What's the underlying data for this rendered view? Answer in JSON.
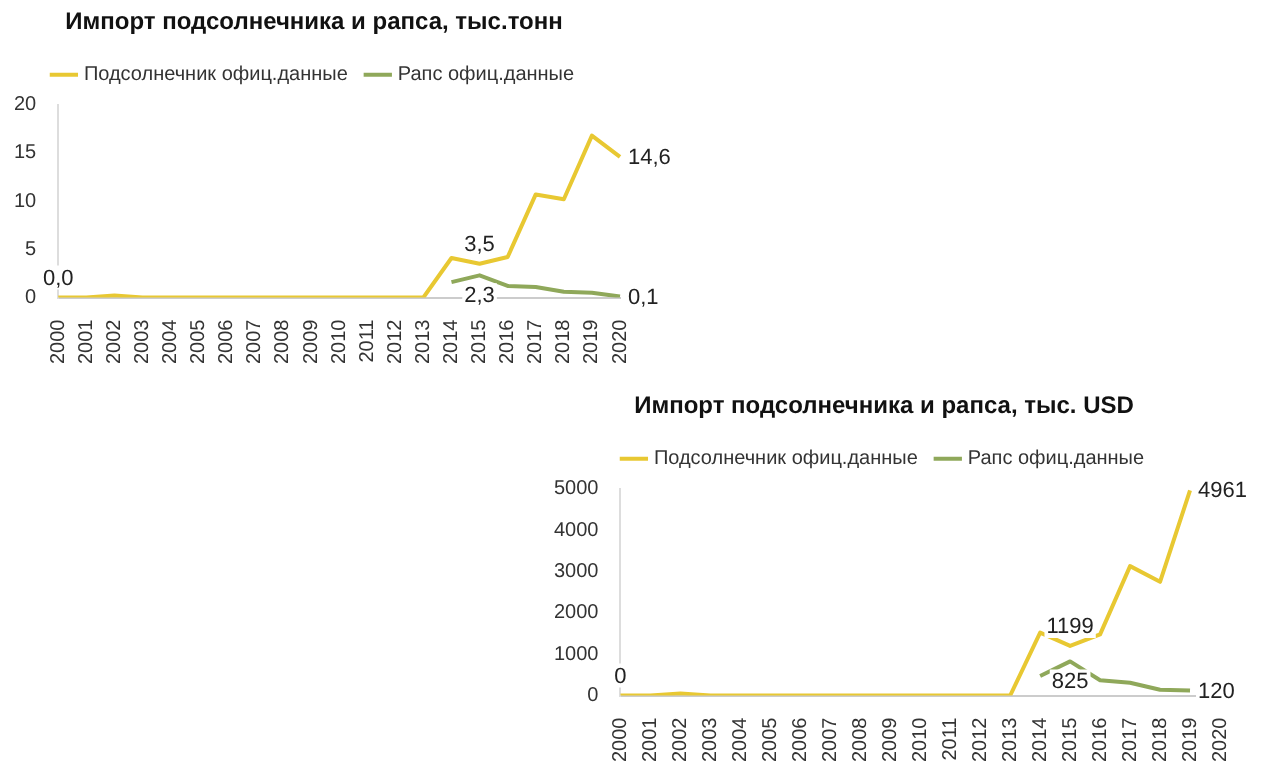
{
  "chart_data": [
    {
      "type": "line",
      "title": "Импорт подсолнечника и рапса, тыс.тонн",
      "categories": [
        "2000",
        "2001",
        "2002",
        "2003",
        "2004",
        "2005",
        "2006",
        "2007",
        "2008",
        "2009",
        "2010",
        "2011",
        "2012",
        "2013",
        "2014",
        "2015",
        "2016",
        "2017",
        "2018",
        "2019",
        "2020"
      ],
      "ylim": [
        0,
        20
      ],
      "yticks": [
        0,
        5,
        10,
        15,
        20
      ],
      "grid": false,
      "legend": "top",
      "marker": "none",
      "series": [
        {
          "name": "Подсолнечник офиц.данные",
          "color": "#e8c832",
          "values": [
            0.0,
            0,
            0.2,
            0,
            0,
            0,
            0,
            0,
            0,
            0,
            0,
            0,
            0,
            0,
            4.1,
            3.5,
            4.2,
            10.7,
            10.2,
            16.8,
            14.6
          ],
          "value_labels": [
            "0,0",
            null,
            null,
            null,
            null,
            null,
            null,
            null,
            null,
            null,
            null,
            null,
            null,
            null,
            null,
            "3,5",
            null,
            null,
            null,
            null,
            "14,6"
          ]
        },
        {
          "name": "Рапс офиц.данные",
          "color": "#8fa85a",
          "values": [
            null,
            null,
            null,
            null,
            null,
            null,
            null,
            null,
            null,
            null,
            null,
            null,
            null,
            null,
            1.6,
            2.3,
            1.2,
            1.1,
            0.6,
            0.5,
            0.1
          ],
          "value_labels": [
            null,
            null,
            null,
            null,
            null,
            null,
            null,
            null,
            null,
            null,
            null,
            null,
            null,
            null,
            null,
            "2,3",
            null,
            null,
            null,
            null,
            "0,1"
          ]
        }
      ]
    },
    {
      "type": "line",
      "title": "Импорт подсолнечника и рапса, тыс. USD",
      "categories": [
        "2000",
        "2001",
        "2002",
        "2003",
        "2004",
        "2005",
        "2006",
        "2007",
        "2008",
        "2009",
        "2010",
        "2011",
        "2012",
        "2013",
        "2014",
        "2015",
        "2016",
        "2017",
        "2018",
        "2019",
        "2020"
      ],
      "ylim": [
        0,
        5000
      ],
      "yticks": [
        0,
        1000,
        2000,
        3000,
        4000,
        5000
      ],
      "grid": false,
      "legend": "top",
      "marker": "none",
      "series": [
        {
          "name": "Подсолнечник офиц.данные",
          "color": "#e8c832",
          "values": [
            0,
            0,
            50,
            0,
            0,
            0,
            0,
            0,
            0,
            0,
            0,
            0,
            0,
            0,
            1520,
            1199,
            1480,
            3130,
            2750,
            4961,
            null
          ],
          "value_labels": [
            "0",
            null,
            null,
            null,
            null,
            null,
            null,
            null,
            null,
            null,
            null,
            null,
            null,
            null,
            null,
            "1199",
            null,
            null,
            null,
            "4961",
            null
          ]
        },
        {
          "name": "Рапс офиц.данные",
          "color": "#8fa85a",
          "values": [
            null,
            null,
            null,
            null,
            null,
            null,
            null,
            null,
            null,
            null,
            null,
            null,
            null,
            null,
            470,
            825,
            370,
            310,
            140,
            120,
            null
          ],
          "value_labels": [
            null,
            null,
            null,
            null,
            null,
            null,
            null,
            null,
            null,
            null,
            null,
            null,
            null,
            null,
            null,
            "825",
            null,
            null,
            null,
            "120",
            null
          ]
        }
      ]
    }
  ]
}
